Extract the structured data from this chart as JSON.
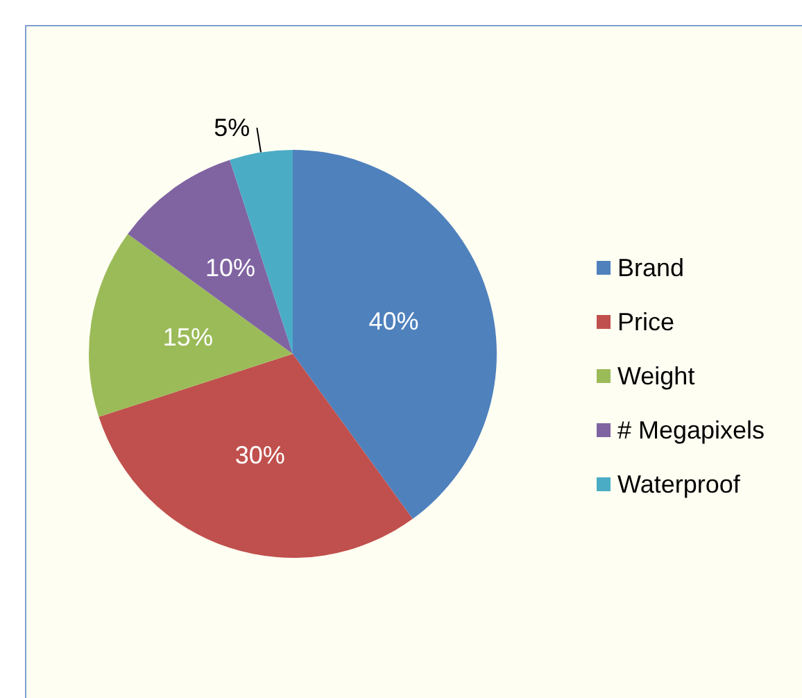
{
  "chart_data": {
    "type": "pie",
    "categories": [
      "Brand",
      "Price",
      "Weight",
      "# Megapixels",
      "Waterproof"
    ],
    "values": [
      40,
      30,
      15,
      10,
      5
    ],
    "colors": [
      "#4f81bd",
      "#c0504d",
      "#9bbb59",
      "#8064a2",
      "#4bacc6"
    ],
    "value_labels": [
      "40%",
      "30%",
      "15%",
      "10%",
      "5%"
    ],
    "legend": "right"
  }
}
